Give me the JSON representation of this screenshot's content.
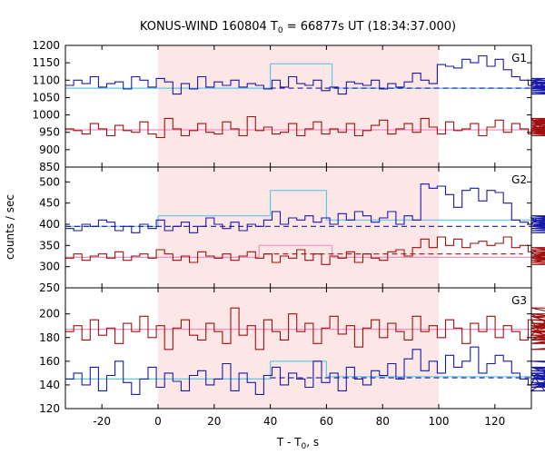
{
  "title": {
    "prefix": "KONUS-WIND 160804 T",
    "sub": "0",
    "suffix": " = 66877s UT (18:34:37.000)"
  },
  "xlabel": {
    "main": "T - T",
    "sub": "0",
    "suffix": ", s"
  },
  "ylabel": "counts / sec",
  "colors": {
    "blue": "#1a1aa8",
    "red": "#a01010",
    "shade": "#fde6e6",
    "fit_blue": "#5cc8e8",
    "fit_red": "#f090c0",
    "bg_blue": "#1a1aa8"
  },
  "chart_data": {
    "type": "line",
    "x_range": [
      -33,
      133
    ],
    "x_ticks": [
      -20,
      0,
      20,
      40,
      60,
      80,
      100,
      120
    ],
    "step": 2.944,
    "shaded_interval": [
      0,
      100
    ],
    "panels": [
      {
        "label": "G1",
        "ylim": [
          850,
          1200
        ],
        "yticks": [
          850,
          900,
          950,
          1000,
          1050,
          1100,
          1150,
          1200
        ],
        "series": [
          {
            "name": "",
            "color": "blue",
            "start": -33,
            "values": [
              1085,
              1100,
              1090,
              1110,
              1080,
              1090,
              1095,
              1075,
              1110,
              1100,
              1080,
              1105,
              1095,
              1060,
              1090,
              1075,
              1110,
              1080,
              1095,
              1085,
              1100,
              1080,
              1090,
              1085,
              1075,
              1100,
              1080,
              1110,
              1090,
              1085,
              1100,
              1070,
              1080,
              1060,
              1095,
              1090,
              1085,
              1100,
              1075,
              1090,
              1080,
              1095,
              1120,
              1100,
              1090,
              1145,
              1140,
              1135,
              1160,
              1150,
              1170,
              1140,
              1160,
              1130,
              1110,
              1100,
              1085,
              1095,
              1075,
              1100,
              1080,
              1090,
              1105,
              1085,
              1075,
              1100,
              1095,
              1080,
              1070,
              1085,
              1060,
              1080,
              1070,
              1075,
              1090,
              1085,
              1080,
              1095,
              1070,
              1075,
              1085,
              1080,
              1100,
              1090,
              1075,
              1085,
              1070,
              1080,
              1090,
              1080,
              1070,
              1060,
              1080,
              1065,
              1075,
              1070,
              1085,
              1075,
              1065,
              1075,
              1080
            ]
          },
          {
            "name": "",
            "color": "red",
            "start": -33,
            "values": [
              960,
              955,
              945,
              975,
              960,
              940,
              970,
              955,
              950,
              980,
              945,
              935,
              990,
              960,
              940,
              955,
              975,
              950,
              945,
              980,
              960,
              940,
              995,
              955,
              965,
              945,
              950,
              975,
              940,
              960,
              980,
              945,
              960,
              950,
              975,
              940,
              955,
              970,
              985,
              945,
              960,
              975,
              950,
              990,
              965,
              945,
              980,
              955,
              960,
              975,
              940,
              965,
              985,
              950,
              975,
              960,
              945,
              990,
              955,
              970,
              945,
              960,
              985,
              955,
              975,
              945,
              960,
              980,
              950,
              990,
              965,
              945,
              975,
              960,
              950,
              985,
              955,
              945,
              970,
              960,
              975,
              950,
              990,
              960,
              945,
              975,
              955,
              965,
              940,
              985,
              960,
              950,
              975,
              945,
              965,
              955,
              980,
              960,
              940,
              970,
              955
            ]
          }
        ],
        "fits": [
          {
            "color": "fit_blue",
            "segments": [
              {
                "x": [
                  -33,
                  40
                ],
                "y": 1077
              },
              {
                "x": [
                  40,
                  62
                ],
                "y": 1147
              },
              {
                "x": [
                  62,
                  133
                ],
                "y": 1077
              }
            ]
          },
          {
            "color": "fit_red",
            "segments": [
              {
                "x": [
                  -33,
                  133
                ],
                "y": 957
              }
            ]
          }
        ],
        "background": [
          {
            "color": "bg_blue",
            "x": [
              40,
              133
            ],
            "y": 1077
          }
        ]
      },
      {
        "label": "G2",
        "ylim": [
          250,
          535
        ],
        "yticks": [
          250,
          300,
          350,
          400,
          450,
          500
        ],
        "series": [
          {
            "name": "",
            "color": "blue",
            "start": -33,
            "values": [
              390,
              385,
              400,
              395,
              410,
              405,
              385,
              395,
              380,
              400,
              390,
              410,
              385,
              395,
              405,
              380,
              395,
              415,
              400,
              390,
              405,
              385,
              400,
              395,
              410,
              430,
              400,
              415,
              410,
              420,
              405,
              415,
              400,
              425,
              410,
              430,
              420,
              405,
              415,
              430,
              400,
              420,
              410,
              495,
              485,
              490,
              470,
              440,
              480,
              485,
              455,
              480,
              475,
              450,
              410,
              405,
              400,
              415,
              395,
              410,
              390,
              400,
              395,
              410,
              405,
              420,
              415,
              400,
              410,
              420,
              395,
              405,
              390,
              385,
              395,
              400,
              390,
              405,
              385,
              410,
              395,
              400,
              380,
              395,
              405,
              390,
              400,
              395,
              410,
              385,
              400,
              405,
              395,
              385,
              400,
              390,
              395,
              380,
              400,
              395,
              390
            ]
          },
          {
            "name": "",
            "color": "red",
            "start": -33,
            "values": [
              320,
              330,
              315,
              325,
              330,
              320,
              335,
              315,
              325,
              330,
              320,
              340,
              330,
              315,
              325,
              310,
              335,
              325,
              320,
              330,
              315,
              325,
              335,
              320,
              330,
              310,
              325,
              320,
              340,
              315,
              330,
              305,
              325,
              320,
              335,
              310,
              330,
              320,
              315,
              335,
              340,
              325,
              345,
              365,
              345,
              370,
              350,
              365,
              345,
              355,
              360,
              350,
              355,
              370,
              345,
              350,
              335,
              325,
              320,
              340,
              315,
              330,
              325,
              310,
              335,
              320,
              330,
              315,
              325,
              345,
              320,
              330,
              315,
              335,
              320,
              310,
              325,
              330,
              315,
              335,
              320,
              305,
              330,
              325,
              340,
              315,
              320,
              330,
              310,
              325,
              335,
              320,
              315,
              330,
              310,
              325,
              320,
              335,
              315,
              325,
              320
            ]
          }
        ],
        "fits": [
          {
            "color": "fit_blue",
            "segments": [
              {
                "x": [
                  -33,
                  0
                ],
                "y": 395
              },
              {
                "x": [
                  0,
                  40
                ],
                "y": 420
              },
              {
                "x": [
                  40,
                  60
                ],
                "y": 480
              },
              {
                "x": [
                  60,
                  133
                ],
                "y": 410
              }
            ]
          },
          {
            "color": "fit_red",
            "segments": [
              {
                "x": [
                  -33,
                  36
                ],
                "y": 322
              },
              {
                "x": [
                  36,
                  62
                ],
                "y": 350
              },
              {
                "x": [
                  62,
                  133
                ],
                "y": 322
              }
            ]
          }
        ],
        "background": [
          {
            "color": "bg_blue",
            "x": [
              -33,
              133
            ],
            "y": 395
          },
          {
            "color": "red",
            "x": [
              38,
              130
            ],
            "y": 330
          }
        ]
      },
      {
        "label": "G3",
        "ylim": [
          120,
          222
        ],
        "yticks": [
          120,
          140,
          160,
          180,
          200
        ],
        "series": [
          {
            "name": "",
            "color": "blue",
            "start": -33,
            "values": [
              145,
              150,
              140,
              155,
              135,
              148,
              160,
              142,
              132,
              145,
              155,
              138,
              150,
              143,
              135,
              148,
              152,
              140,
              145,
              158,
              135,
              150,
              142,
              132,
              148,
              155,
              140,
              150,
              145,
              138,
              160,
              142,
              150,
              135,
              155,
              145,
              140,
              152,
              148,
              158,
              145,
              162,
              170,
              152,
              160,
              150,
              165,
              155,
              160,
              172,
              150,
              158,
              165,
              160,
              150,
              145,
              140,
              150,
              135,
              148,
              145,
              155,
              140,
              150,
              138,
              145,
              155,
              140,
              150,
              145,
              138,
              152,
              145,
              140,
              155,
              148,
              138,
              150,
              145,
              155,
              140,
              150,
              145,
              138,
              155,
              150,
              140,
              160,
              145,
              150,
              138,
              152,
              145,
              140,
              150,
              148,
              155,
              138,
              145,
              150,
              142
            ]
          },
          {
            "name": "",
            "color": "red",
            "start": -33,
            "values": [
              185,
              190,
              178,
              195,
              182,
              188,
              175,
              192,
              185,
              198,
              180,
              190,
              170,
              188,
              195,
              182,
              178,
              192,
              185,
              175,
              205,
              182,
              190,
              170,
              195,
              185,
              178,
              200,
              185,
              192,
              175,
              188,
              198,
              183,
              190,
              172,
              188,
              195,
              180,
              192,
              185,
              178,
              198,
              185,
              190,
              180,
              195,
              188,
              175,
              192,
              185,
              198,
              180,
              190,
              185,
              178,
              195,
              188,
              182,
              200,
              185,
              178,
              192,
              185,
              198,
              180,
              190,
              175,
              188,
              205,
              185,
              192,
              180,
              198,
              185,
              178,
              190,
              188,
              200,
              182,
              192,
              175,
              188,
              195,
              180,
              192,
              185,
              178,
              190,
              185,
              175,
              192,
              185,
              180,
              170,
              188,
              192,
              182,
              175,
              190,
              185
            ]
          }
        ],
        "fits": [
          {
            "color": "fit_blue",
            "segments": [
              {
                "x": [
                  -33,
                  40
                ],
                "y": 145
              },
              {
                "x": [
                  40,
                  60
                ],
                "y": 160
              },
              {
                "x": [
                  60,
                  133
                ],
                "y": 147
              }
            ]
          },
          {
            "color": "fit_red",
            "segments": [
              {
                "x": [
                  -33,
                  133
                ],
                "y": 187
              }
            ]
          }
        ],
        "background": [
          {
            "color": "bg_blue",
            "x": [
              40,
              133
            ],
            "y": 146
          }
        ]
      }
    ]
  }
}
